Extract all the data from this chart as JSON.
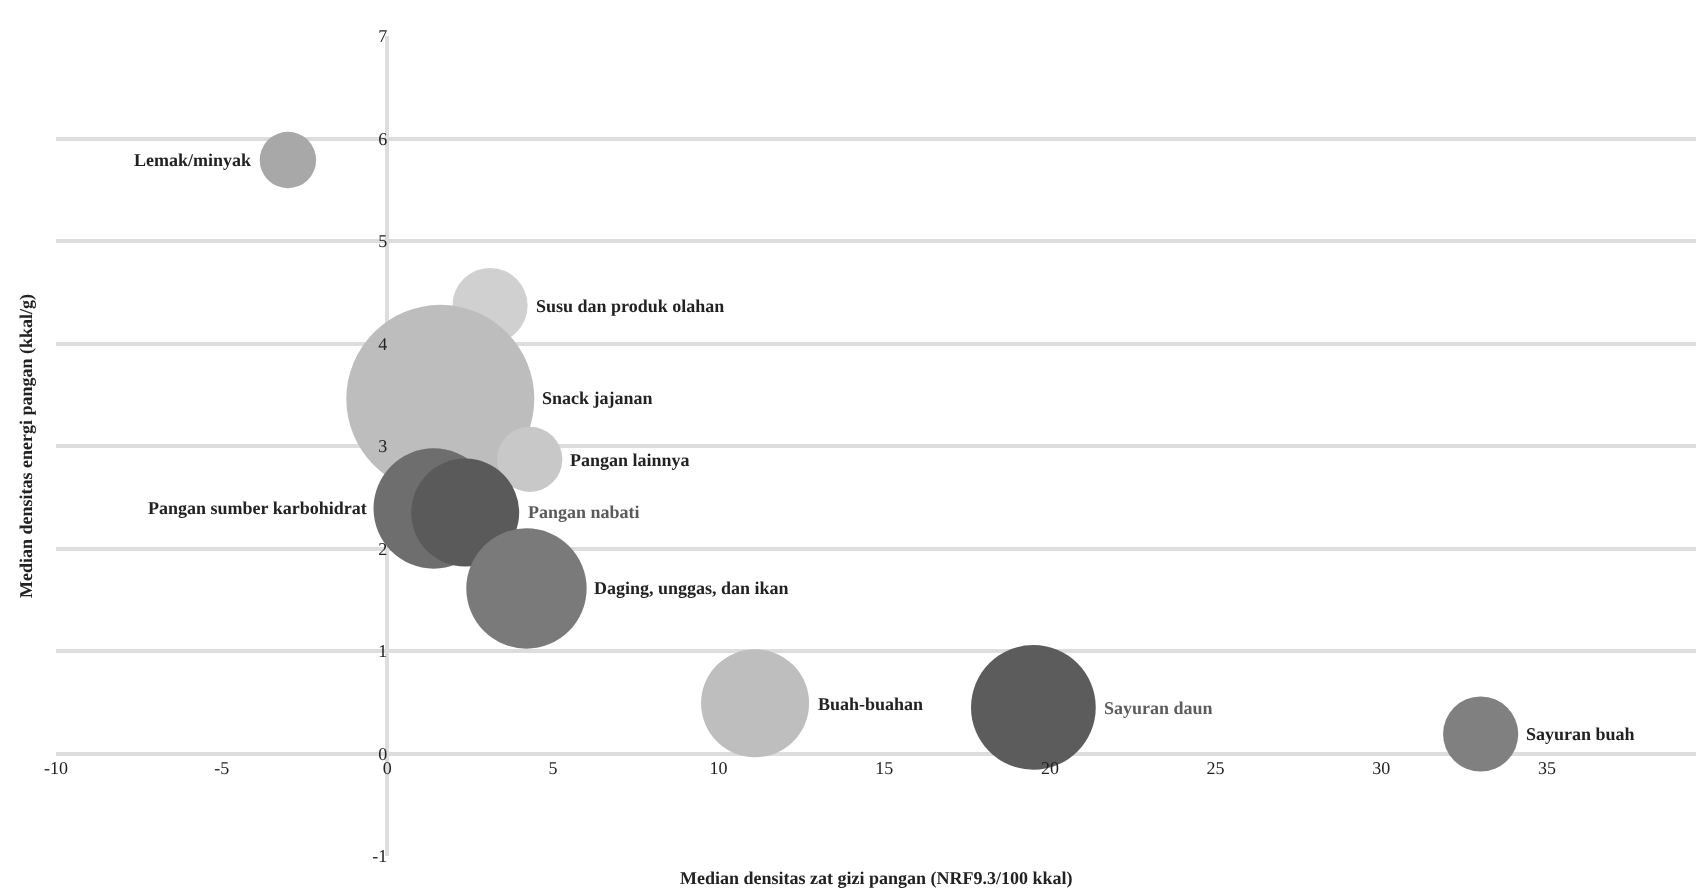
{
  "chart_data": {
    "type": "bubble",
    "xlabel": "Median densitas zat gizi pangan (NRF9.3/100 kkal)",
    "ylabel": "Median densitas energi pangan (kkal/g)",
    "series": [
      {
        "name": "Lemak/minyak",
        "color": "#a8a8a8",
        "x": [
          -3.0
        ],
        "values": [
          5.79
        ],
        "sizes": [
          0.09
        ]
      },
      {
        "name": "Susu dan produk olahan",
        "color": "#d0d0d0",
        "x": [
          3.1
        ],
        "values": [
          4.37
        ],
        "sizes": [
          0.16
        ]
      },
      {
        "name": "Snack jajanan",
        "color": "#bdbdbd",
        "x": [
          1.6
        ],
        "values": [
          3.46
        ],
        "sizes": [
          1
        ]
      },
      {
        "name": "Pangan lainnya",
        "color": "#c8c8c8",
        "x": [
          4.3
        ],
        "values": [
          2.87
        ],
        "sizes": [
          0.12
        ]
      },
      {
        "name": "Pangan sumber karbohidrat",
        "color": "#6e6e6e",
        "x": [
          1.4
        ],
        "values": [
          2.39
        ],
        "sizes": [
          0.41
        ]
      },
      {
        "name": "Pangan nabati",
        "color": "#5a5a5a",
        "x": [
          2.35
        ],
        "values": [
          2.35
        ],
        "sizes": [
          0.33
        ]
      },
      {
        "name": "Daging, unggas, dan ikan",
        "color": "#7a7a7a",
        "x": [
          4.2
        ],
        "values": [
          1.61
        ],
        "sizes": [
          0.41
        ]
      },
      {
        "name": "Buah-buahan",
        "color": "#bebebe",
        "x": [
          11.1
        ],
        "values": [
          0.49
        ],
        "sizes": [
          0.33
        ]
      },
      {
        "name": "Sayuran daun",
        "color": "#5c5c5c",
        "x": [
          19.5
        ],
        "values": [
          0.45
        ],
        "sizes": [
          0.44
        ]
      },
      {
        "name": "Sayuran buah",
        "color": "#808080",
        "x": [
          33.0
        ],
        "values": [
          0.19
        ],
        "sizes": [
          0.16
        ]
      }
    ],
    "xlim": [
      -10,
      39.5
    ],
    "xticks": [
      -10,
      -5,
      0,
      5,
      10,
      15,
      20,
      25,
      30,
      35
    ],
    "ylim": [
      -1,
      7
    ],
    "yticks": [
      -1,
      0,
      1,
      2,
      3,
      4,
      5,
      6,
      7
    ],
    "grid": "y"
  }
}
